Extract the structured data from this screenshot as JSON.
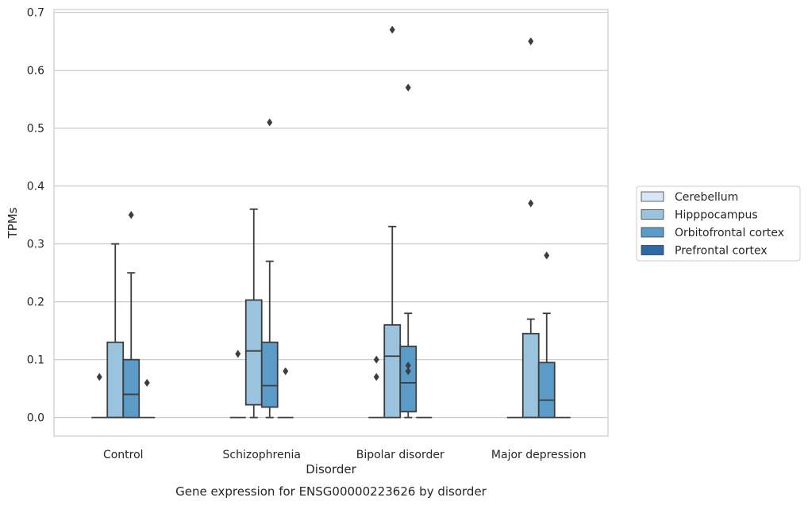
{
  "chart_data": {
    "type": "box",
    "title": "Gene expression for ENSG00000223626 by disorder",
    "xlabel": "Disorder",
    "ylabel": "TPMs",
    "categories": [
      "Control",
      "Schizophrenia",
      "Bipolar disorder",
      "Major depression"
    ],
    "ylim": [
      -0.032,
      0.705
    ],
    "yticks": [
      "0.0",
      "0.1",
      "0.2",
      "0.3",
      "0.4",
      "0.5",
      "0.6",
      "0.7"
    ],
    "grid": "horizontal",
    "legend_position": "right",
    "series": [
      {
        "name": "Cerebellum",
        "color": "#d6e6f4",
        "boxes": [
          {
            "category": "Control",
            "min": 0,
            "q1": 0,
            "median": 0,
            "q3": 0,
            "max": 0,
            "outliers": [
              0.07
            ]
          },
          {
            "category": "Schizophrenia",
            "min": 0,
            "q1": 0,
            "median": 0,
            "q3": 0,
            "max": 0,
            "outliers": [
              0.11
            ]
          },
          {
            "category": "Bipolar disorder",
            "min": 0,
            "q1": 0,
            "median": 0,
            "q3": 0,
            "max": 0,
            "outliers": [
              0.07,
              0.1
            ]
          },
          {
            "category": "Major depression",
            "min": 0,
            "q1": 0,
            "median": 0,
            "q3": 0,
            "max": 0,
            "outliers": []
          }
        ]
      },
      {
        "name": "Hipppocampus",
        "color": "#9ac4dd",
        "boxes": [
          {
            "category": "Control",
            "min": 0,
            "q1": 0,
            "median": 0,
            "q3": 0.13,
            "max": 0.3,
            "outliers": []
          },
          {
            "category": "Schizophrenia",
            "min": 0,
            "q1": 0.022,
            "median": 0.115,
            "q3": 0.203,
            "max": 0.36,
            "outliers": []
          },
          {
            "category": "Bipolar disorder",
            "min": 0,
            "q1": 0,
            "median": 0.106,
            "q3": 0.16,
            "max": 0.33,
            "outliers": [
              0.67
            ]
          },
          {
            "category": "Major depression",
            "min": 0,
            "q1": 0,
            "median": 0,
            "q3": 0.145,
            "max": 0.17,
            "outliers": [
              0.37,
              0.65
            ]
          }
        ]
      },
      {
        "name": "Orbitofrontal cortex",
        "color": "#5a9bc8",
        "boxes": [
          {
            "category": "Control",
            "min": 0,
            "q1": 0,
            "median": 0.04,
            "q3": 0.1,
            "max": 0.25,
            "outliers": [
              0.35
            ]
          },
          {
            "category": "Schizophrenia",
            "min": 0,
            "q1": 0.018,
            "median": 0.055,
            "q3": 0.13,
            "max": 0.27,
            "outliers": [
              0.51
            ]
          },
          {
            "category": "Bipolar disorder",
            "min": 0,
            "q1": 0.01,
            "median": 0.06,
            "q3": 0.123,
            "max": 0.18,
            "outliers": [
              0.57,
              0.08,
              0.09
            ]
          },
          {
            "category": "Major depression",
            "min": 0,
            "q1": 0,
            "median": 0.03,
            "q3": 0.095,
            "max": 0.18,
            "outliers": [
              0.28
            ]
          }
        ]
      },
      {
        "name": "Prefrontal cortex",
        "color": "#2b6aa5",
        "boxes": [
          {
            "category": "Control",
            "min": 0,
            "q1": 0,
            "median": 0,
            "q3": 0,
            "max": 0,
            "outliers": [
              0.06
            ]
          },
          {
            "category": "Schizophrenia",
            "min": 0,
            "q1": 0,
            "median": 0,
            "q3": 0,
            "max": 0,
            "outliers": [
              0.08
            ]
          },
          {
            "category": "Bipolar disorder",
            "min": 0,
            "q1": 0,
            "median": 0,
            "q3": 0,
            "max": 0,
            "outliers": []
          },
          {
            "category": "Major depression",
            "min": 0,
            "q1": 0,
            "median": 0,
            "q3": 0,
            "max": 0,
            "outliers": []
          }
        ]
      }
    ]
  }
}
